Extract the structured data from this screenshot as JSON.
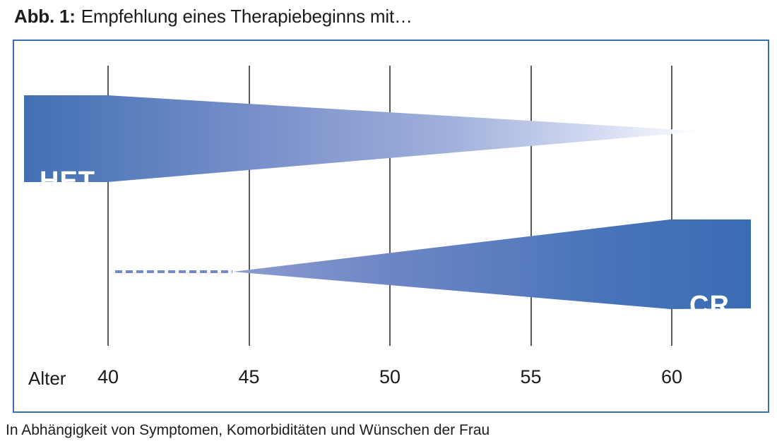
{
  "title": {
    "prefix": "Abb. 1:",
    "text": "Empfehlung eines Therapiebeginns mit…"
  },
  "caption": "In Abhängigkeit von Symptomen, Komorbiditäten und Wünschen der Frau",
  "axis": {
    "label": "Alter"
  },
  "series": {
    "het": {
      "label": "HET"
    },
    "cr": {
      "label": "CR"
    }
  },
  "colors": {
    "frame_border": "#3a6db8",
    "gridline": "#5a5a5a",
    "het_gradient_start": "#4270b4",
    "het_gradient_end": "#ffffff",
    "cr_gradient_start": "#8d9cd0",
    "cr_gradient_end": "#3a6cb4",
    "dashed_line": "#7288c7",
    "band_text": "#ffffff"
  },
  "chart_data": {
    "type": "area",
    "title": "Abb. 1: Empfehlung eines Therapiebeginns mit…",
    "xlabel": "Alter",
    "x_ticks": [
      40,
      45,
      50,
      55,
      60
    ],
    "x_axis_range": [
      36.7,
      62.8
    ],
    "grid": "vertical gridlines at each age tick",
    "legend_position": "labels inside bands",
    "series": [
      {
        "name": "HET",
        "shape": "tapering-band",
        "band_start_age": 36.7,
        "full_width_until_age": 40,
        "tip_age": 61.2,
        "direction": "band widest at youngest ages, tapers to a point near age 61"
      },
      {
        "name": "CR",
        "shape": "widening-band",
        "dashed_lead_start_age": 40.3,
        "dashed_lead_end_age": 44.4,
        "band_point_age": 44.5,
        "full_width_from_age": 60,
        "band_end_age": 62.8,
        "direction": "band starts as a point near age 44.5 and widens toward older ages"
      }
    ],
    "caption": "In Abhängigkeit von Symptomen, Komorbiditäten und Wünschen der Frau"
  }
}
